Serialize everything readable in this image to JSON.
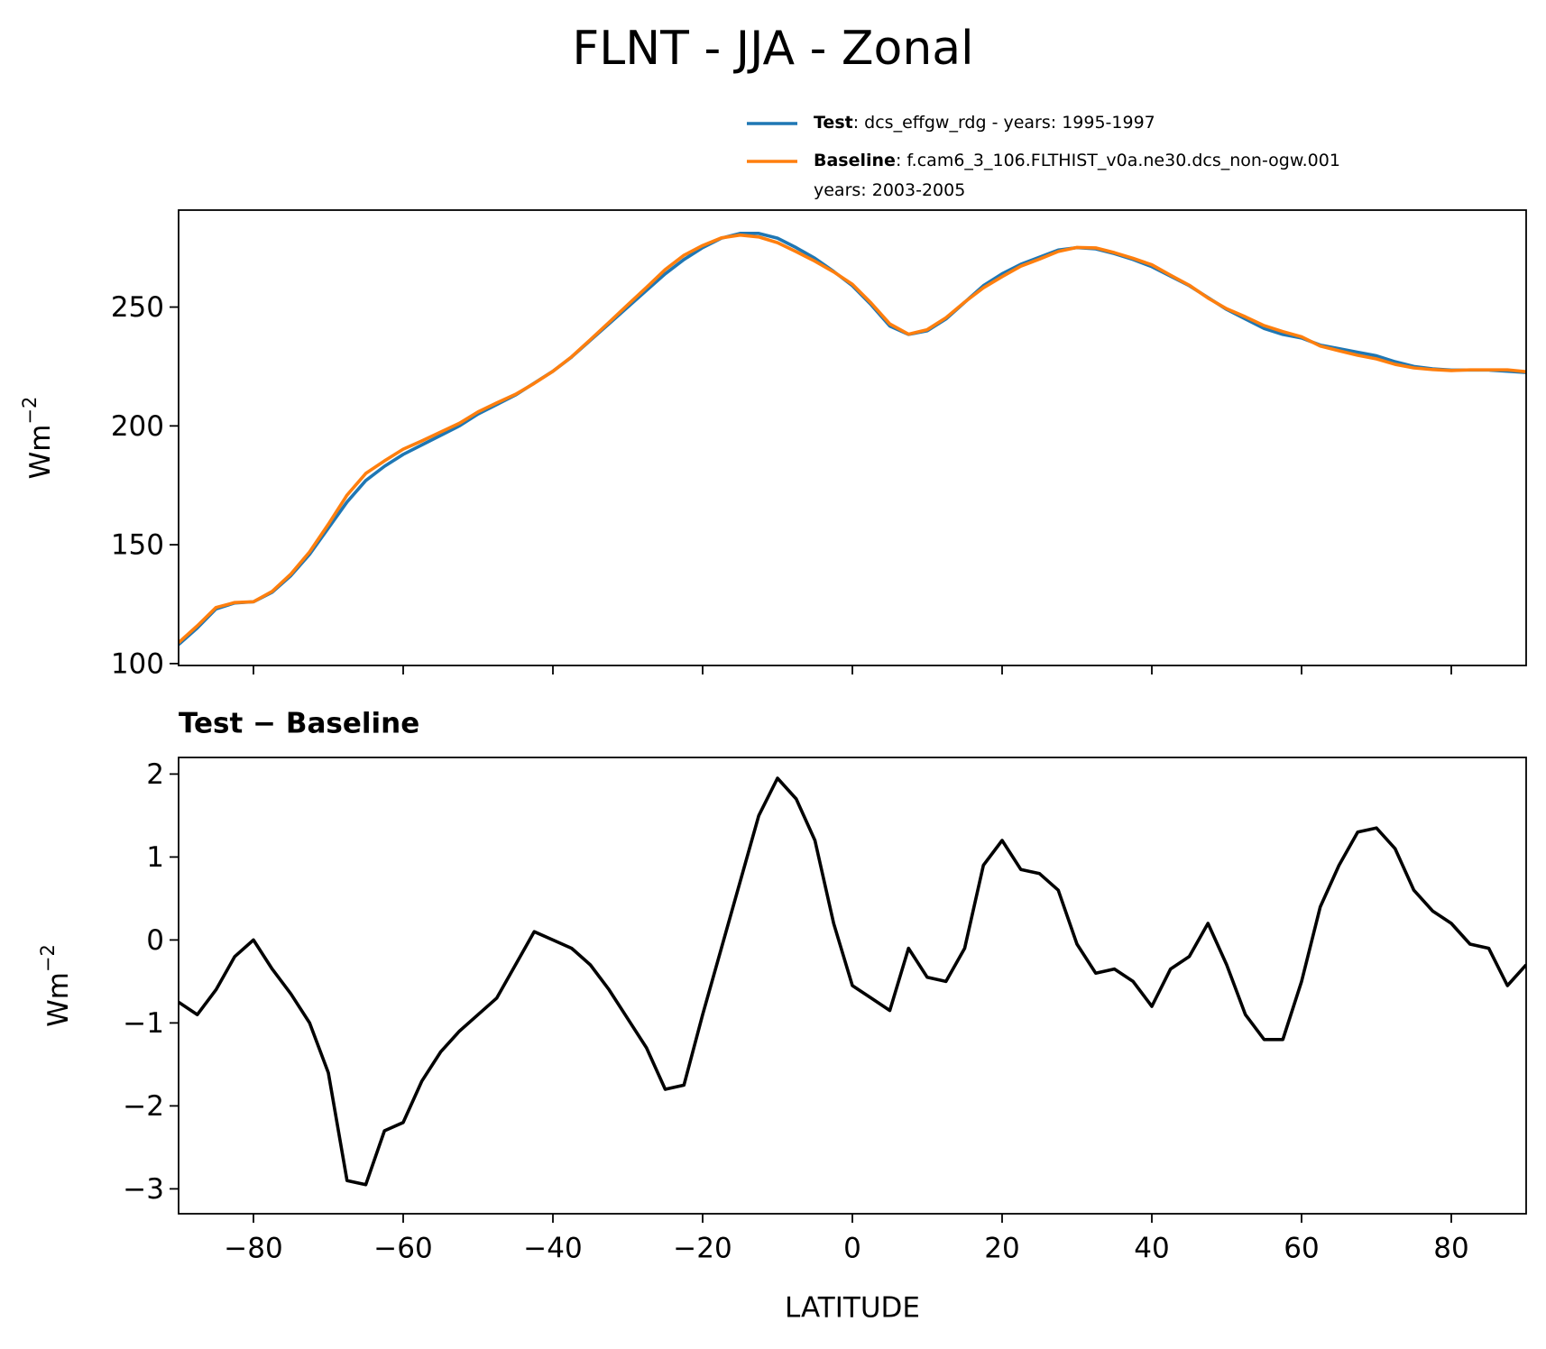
{
  "title": "FLNT - JJA - Zonal",
  "chart_data": [
    {
      "type": "line",
      "ylabel": {
        "base": "Wm",
        "sup": "−2"
      },
      "x": [
        -90,
        -87.5,
        -85,
        -82.5,
        -80,
        -77.5,
        -75,
        -72.5,
        -70,
        -67.5,
        -65,
        -62.5,
        -60,
        -57.5,
        -55,
        -52.5,
        -50,
        -47.5,
        -45,
        -42.5,
        -40,
        -37.5,
        -35,
        -32.5,
        -30,
        -27.5,
        -25,
        -22.5,
        -20,
        -17.5,
        -15,
        -12.5,
        -10,
        -7.5,
        -5,
        -2.5,
        0,
        2.5,
        5,
        7.5,
        10,
        12.5,
        15,
        17.5,
        20,
        22.5,
        25,
        27.5,
        30,
        32.5,
        35,
        37.5,
        40,
        42.5,
        45,
        47.5,
        50,
        52.5,
        55,
        57.5,
        60,
        62.5,
        65,
        67.5,
        70,
        72.5,
        75,
        77.5,
        80,
        82.5,
        85,
        87.5,
        90
      ],
      "series": [
        {
          "name": "Test",
          "description": [
            ": dcs_effgw_rdg - years: 1995-1997"
          ],
          "color": "#1f77b4",
          "values": [
            108,
            115,
            123,
            125.5,
            126,
            130,
            137,
            146,
            157,
            168,
            177,
            183,
            188,
            192,
            196,
            200,
            205,
            209,
            213,
            218,
            223,
            229,
            236,
            243,
            250,
            257,
            264,
            270,
            275,
            279,
            281,
            281,
            279,
            275,
            270.5,
            265,
            259,
            251,
            242,
            238.5,
            240,
            245,
            252,
            259,
            264,
            268,
            271,
            274,
            275,
            274.5,
            272.5,
            270,
            267,
            263,
            259,
            254,
            249,
            245,
            241,
            238.5,
            237,
            234,
            232.5,
            231,
            229.5,
            227,
            225,
            224,
            223.5,
            223.5,
            223.5,
            223,
            222.5
          ]
        },
        {
          "name": "Baseline",
          "description": [
            ": f.cam6_3_106.FLTHIST_v0a.ne30.dcs_non-ogw.001",
            "years: 2003-2005"
          ],
          "color": "#ff7f0e",
          "values": [
            108.8,
            115.9,
            123.6,
            125.7,
            126,
            130.4,
            137.7,
            147,
            158.6,
            170.9,
            180,
            185.3,
            190.2,
            193.7,
            197.4,
            201.1,
            205.9,
            209.7,
            213.3,
            217.9,
            223,
            229.1,
            236.3,
            243.6,
            251,
            258.3,
            265.8,
            271.8,
            275.9,
            279.1,
            280.3,
            279.5,
            277.1,
            273.3,
            269.3,
            264.8,
            259.6,
            251.7,
            242.9,
            238.6,
            240.5,
            245.5,
            252.1,
            258.1,
            262.8,
            267.2,
            270.2,
            273.4,
            275.1,
            274.9,
            272.9,
            270.5,
            267.8,
            263.4,
            259.2,
            253.8,
            249.3,
            245.9,
            242.2,
            239.7,
            237.5,
            233.6,
            231.6,
            229.7,
            228.2,
            225.9,
            224.4,
            223.7,
            223.3,
            223.6,
            223.6,
            223.6,
            222.8
          ]
        }
      ],
      "xlim": [
        -90,
        90
      ],
      "xticks": [
        -80,
        -60,
        -40,
        -20,
        0,
        20,
        40,
        60,
        80
      ],
      "xticklabels": false,
      "ylim": [
        99.2,
        290.8
      ],
      "yticks": [
        100,
        150,
        200,
        250
      ],
      "legend": "upper right outside"
    },
    {
      "type": "line",
      "title": "Test − Baseline",
      "xlabel": "LATITUDE",
      "ylabel": {
        "base": "Wm",
        "sup": "−2"
      },
      "x": [
        -90,
        -87.5,
        -85,
        -82.5,
        -80,
        -77.5,
        -75,
        -72.5,
        -70,
        -67.5,
        -65,
        -62.5,
        -60,
        -57.5,
        -55,
        -52.5,
        -50,
        -47.5,
        -45,
        -42.5,
        -40,
        -37.5,
        -35,
        -32.5,
        -30,
        -27.5,
        -25,
        -22.5,
        -20,
        -17.5,
        -15,
        -12.5,
        -10,
        -7.5,
        -5,
        -2.5,
        0,
        2.5,
        5,
        7.5,
        10,
        12.5,
        15,
        17.5,
        20,
        22.5,
        25,
        27.5,
        30,
        32.5,
        35,
        37.5,
        40,
        42.5,
        45,
        47.5,
        50,
        52.5,
        55,
        57.5,
        60,
        62.5,
        65,
        67.5,
        70,
        72.5,
        75,
        77.5,
        80,
        82.5,
        85,
        87.5,
        90
      ],
      "series": [
        {
          "color": "#000000",
          "values": [
            -0.75,
            -0.9,
            -0.6,
            -0.2,
            0,
            -0.35,
            -0.65,
            -1,
            -1.6,
            -2.9,
            -2.95,
            -2.3,
            -2.2,
            -1.7,
            -1.35,
            -1.1,
            -0.9,
            -0.7,
            -0.3,
            0.1,
            0,
            -0.1,
            -0.3,
            -0.6,
            -0.95,
            -1.3,
            -1.8,
            -1.75,
            -0.9,
            -0.1,
            0.7,
            1.5,
            1.95,
            1.7,
            1.2,
            0.2,
            -0.55,
            -0.7,
            -0.85,
            -0.1,
            -0.45,
            -0.5,
            -0.1,
            0.9,
            1.2,
            0.85,
            0.8,
            0.6,
            -0.05,
            -0.4,
            -0.35,
            -0.5,
            -0.8,
            -0.35,
            -0.2,
            0.2,
            -0.3,
            -0.9,
            -1.2,
            -1.2,
            -0.5,
            0.4,
            0.9,
            1.3,
            1.35,
            1.1,
            0.6,
            0.35,
            0.2,
            -0.05,
            -0.1,
            -0.55,
            -0.3
          ]
        }
      ],
      "xlim": [
        -90,
        90
      ],
      "xticks": [
        {
          "value": -80,
          "label": "−80"
        },
        {
          "value": -60,
          "label": "−60"
        },
        {
          "value": -40,
          "label": "−40"
        },
        {
          "value": -20,
          "label": "−20"
        },
        0,
        20,
        40,
        60,
        80
      ],
      "ylim": [
        -3.3,
        2.2
      ],
      "yticks": [
        {
          "value": -3,
          "label": "−3"
        },
        {
          "value": -2,
          "label": "−2"
        },
        {
          "value": -1,
          "label": "−1"
        },
        0,
        1,
        2
      ]
    }
  ]
}
